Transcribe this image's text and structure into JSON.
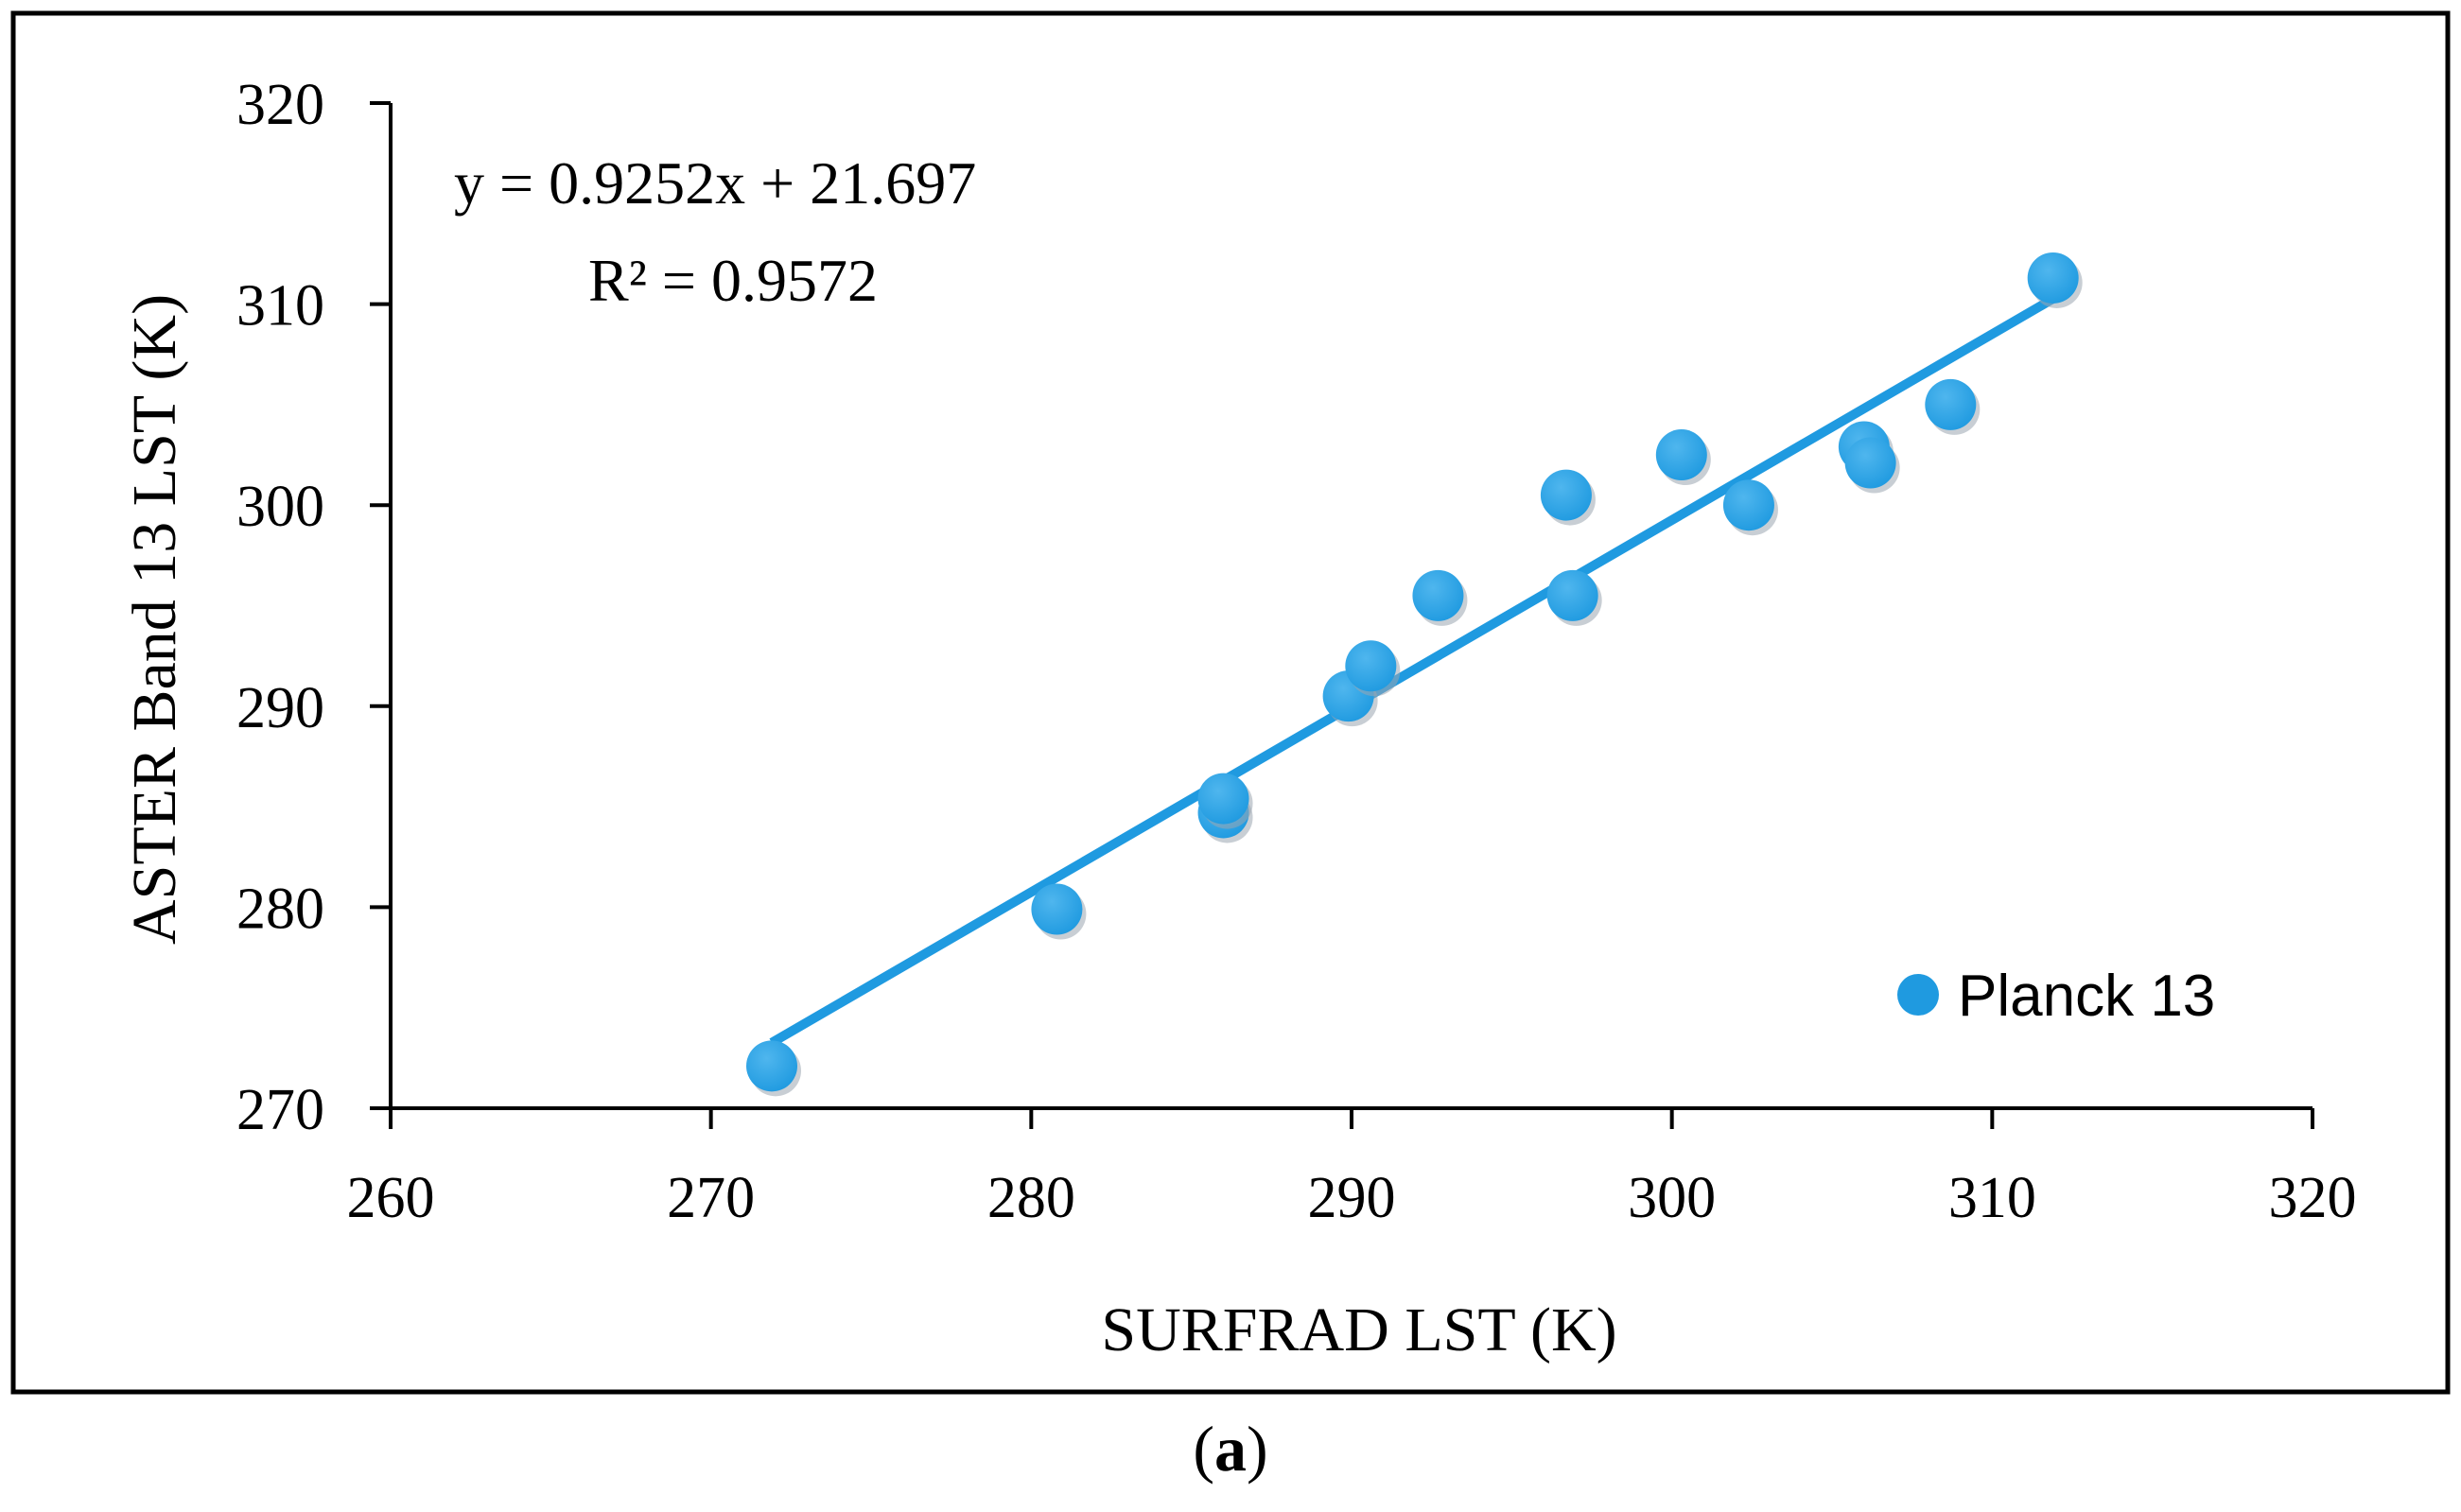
{
  "chart_data": {
    "type": "scatter",
    "title": "",
    "xlabel": "SURFRAD LST (K)",
    "ylabel": "ASTER Band 13 LST  (K)",
    "xlim": [
      260,
      320
    ],
    "ylim": [
      270,
      320
    ],
    "xticks": [
      "260",
      "270",
      "280",
      "290",
      "300",
      "310",
      "320"
    ],
    "yticks": [
      "270",
      "280",
      "290",
      "300",
      "310",
      "320"
    ],
    "grid": false,
    "legend_position": "bottom-right",
    "series": [
      {
        "name": "Planck 13",
        "color": "#1f9ae0",
        "points": [
          {
            "x": 271.9,
            "y": 272.1
          },
          {
            "x": 280.8,
            "y": 279.9
          },
          {
            "x": 286.0,
            "y": 284.7
          },
          {
            "x": 286.0,
            "y": 285.4
          },
          {
            "x": 289.9,
            "y": 290.5
          },
          {
            "x": 290.6,
            "y": 292.0
          },
          {
            "x": 292.7,
            "y": 295.5
          },
          {
            "x": 296.7,
            "y": 300.5
          },
          {
            "x": 296.9,
            "y": 295.5
          },
          {
            "x": 300.3,
            "y": 302.5
          },
          {
            "x": 302.4,
            "y": 300.0
          },
          {
            "x": 306.0,
            "y": 302.9
          },
          {
            "x": 306.2,
            "y": 302.1
          },
          {
            "x": 308.7,
            "y": 305.0
          },
          {
            "x": 311.9,
            "y": 311.3
          }
        ]
      }
    ],
    "trendline": {
      "slope": 0.9252,
      "intercept": 21.697,
      "x_range": [
        271.9,
        311.9
      ],
      "color": "#1f9ae0",
      "equation": "y = 0.9252x + 21.697",
      "r_squared": "R² = 0.9572"
    }
  },
  "caption": {
    "open": "(",
    "letter": "a",
    "close": ")"
  }
}
